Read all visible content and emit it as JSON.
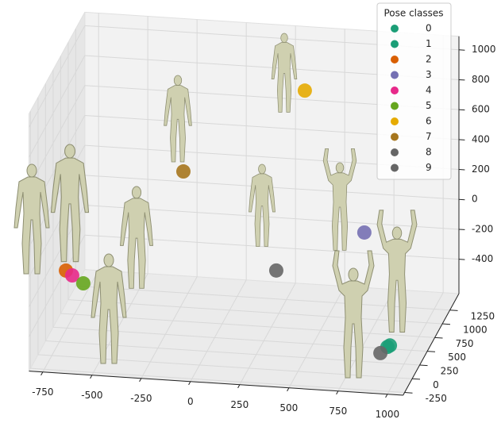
{
  "chart_data": {
    "type": "scatter3d",
    "xlim": [
      -820,
      1080
    ],
    "ylim": [
      -300,
      1550
    ],
    "zlim": [
      -630,
      1090
    ],
    "xticks": [
      -750,
      -500,
      -250,
      0,
      250,
      500,
      750,
      1000
    ],
    "yticks": [
      -250,
      0,
      250,
      500,
      750,
      1000,
      1250
    ],
    "zticks": [
      -400,
      -200,
      0,
      200,
      400,
      600,
      800,
      1000
    ],
    "grid": true,
    "legend": {
      "title": "Pose classes",
      "loc": "upper right"
    },
    "series": [
      {
        "name": "0",
        "color": "#1b9e77",
        "x": [
          985
        ],
        "y": [
          -200
        ],
        "z": [
          -352
        ]
      },
      {
        "name": "1",
        "color": "#1b9e77",
        "x": [
          990
        ],
        "y": [
          -150
        ],
        "z": [
          -360
        ]
      },
      {
        "name": "2",
        "color": "#d95f02",
        "x": [
          -709
        ],
        "y": [
          200
        ],
        "z": [
          -132
        ]
      },
      {
        "name": "3",
        "color": "#7570b3",
        "x": [
          638
        ],
        "y": [
          1300
        ],
        "z": [
          -167
        ]
      },
      {
        "name": "4",
        "color": "#e7298a",
        "x": [
          -674
        ],
        "y": [
          180
        ],
        "z": [
          -154
        ]
      },
      {
        "name": "5",
        "color": "#66a61e",
        "x": [
          -613
        ],
        "y": [
          150
        ],
        "z": [
          -191
        ]
      },
      {
        "name": "6",
        "color": "#e6ab02",
        "x": [
          351
        ],
        "y": [
          1200
        ],
        "z": [
          794
        ]
      },
      {
        "name": "7",
        "color": "#a6761d",
        "x": [
          -235
        ],
        "y": [
          1000
        ],
        "z": [
          277
        ]
      },
      {
        "name": "8",
        "color": "#666666",
        "x": [
          252
        ],
        "y": [
          900
        ],
        "z": [
          -307
        ]
      },
      {
        "name": "9",
        "color": "#666666",
        "x": [
          934
        ],
        "y": [
          -100
        ],
        "z": [
          -434
        ]
      }
    ]
  }
}
